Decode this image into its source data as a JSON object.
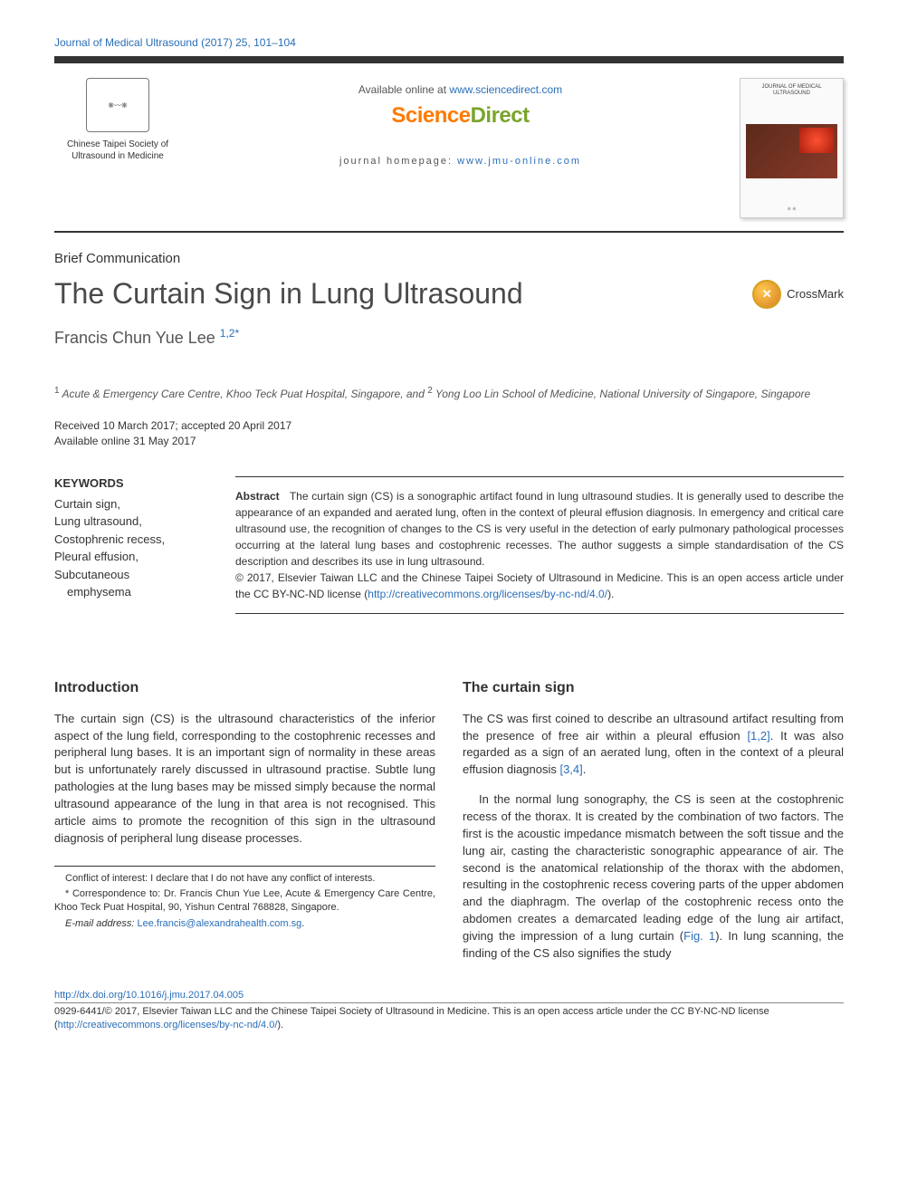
{
  "journal_header": "Journal of Medical Ultrasound (2017) 25, 101–104",
  "header": {
    "society_name": "Chinese Taipei Society of Ultrasound in Medicine",
    "available_prefix": "Available online at ",
    "available_link": "www.sciencedirect.com",
    "sd_science": "Science",
    "sd_direct": "Direct",
    "homepage_prefix": "journal homepage: ",
    "homepage_link": "www.jmu-online.com",
    "cover_title": "JOURNAL OF MEDICAL ULTRASOUND"
  },
  "article_type": "Brief Communication",
  "title": "The Curtain Sign in Lung Ultrasound",
  "crossmark_label": "CrossMark",
  "author": {
    "name": "Francis Chun Yue Lee ",
    "sup": "1,2*"
  },
  "affiliations": {
    "sup1": "1",
    "text1": " Acute & Emergency Care Centre, Khoo Teck Puat Hospital, Singapore, and ",
    "sup2": "2",
    "text2": " Yong Loo Lin School of Medicine, National University of Singapore, Singapore"
  },
  "dates": {
    "line1": "Received 10 March 2017; accepted 20 April 2017",
    "line2": "Available online 31 May 2017"
  },
  "keywords": {
    "heading": "KEYWORDS",
    "items": [
      "Curtain sign,",
      "Lung ultrasound,",
      "Costophrenic recess,",
      "Pleural effusion,",
      "Subcutaneous"
    ],
    "indent_item": "emphysema"
  },
  "abstract": {
    "label": "Abstract",
    "body": "The curtain sign (CS) is a sonographic artifact found in lung ultrasound studies. It is generally used to describe the appearance of an expanded and aerated lung, often in the context of pleural effusion diagnosis. In emergency and critical care ultrasound use, the recognition of changes to the CS is very useful in the detection of early pulmonary pathological processes occurring at the lateral lung bases and costophrenic recesses. The author suggests a simple standardisation of the CS description and describes its use in lung ultrasound.",
    "copyright": "© 2017, Elsevier Taiwan LLC and the Chinese Taipei Society of Ultrasound in Medicine. This is an open access article under the CC BY-NC-ND license (",
    "cc_link": "http://creativecommons.org/licenses/by-nc-nd/4.0/",
    "copyright_end": ")."
  },
  "sections": {
    "intro_heading": "Introduction",
    "intro_p1": "The curtain sign (CS) is the ultrasound characteristics of the inferior aspect of the lung field, corresponding to the costophrenic recesses and peripheral lung bases. It is an important sign of normality in these areas but is unfortunately rarely discussed in ultrasound practise. Subtle lung pathologies at the lung bases may be missed simply because the normal ultrasound appearance of the lung in that area is not recognised. This article aims to promote the recognition of this sign in the ultrasound diagnosis of peripheral lung disease processes.",
    "cs_heading": "The curtain sign",
    "cs_p1_a": "The CS was first coined to describe an ultrasound artifact resulting from the presence of free air within a pleural effusion ",
    "cs_ref12": "[1,2]",
    "cs_p1_b": ". It was also regarded as a sign of an aerated lung, often in the context of a pleural effusion diagnosis ",
    "cs_ref34": "[3,4]",
    "cs_p1_c": ".",
    "cs_p2_a": "In the normal lung sonography, the CS is seen at the costophrenic recess of the thorax. It is created by the combination of two factors. The first is the acoustic impedance mismatch between the soft tissue and the lung air, casting the characteristic sonographic appearance of air. The second is the anatomical relationship of the thorax with the abdomen, resulting in the costophrenic recess covering parts of the upper abdomen and the diaphragm. The overlap of the costophrenic recess onto the abdomen creates a demarcated leading edge of the lung air artifact, giving the impression of a lung curtain (",
    "cs_fig1": "Fig. 1",
    "cs_p2_b": "). In lung scanning, the finding of the CS also signifies the study"
  },
  "footnotes": {
    "conflict": "Conflict of interest: I declare that I do not have any conflict of interests.",
    "corr": "* Correspondence to: Dr. Francis Chun Yue Lee, Acute & Emergency Care Centre, Khoo Teck Puat Hospital, 90, Yishun Central 768828, Singapore.",
    "email_label": "E-mail address: ",
    "email": "Lee.francis@alexandrahealth.com.sg",
    "email_end": "."
  },
  "footer": {
    "doi": "http://dx.doi.org/10.1016/j.jmu.2017.04.005",
    "copyright_a": "0929-6441/© 2017, Elsevier Taiwan LLC and the Chinese Taipei Society of Ultrasound in Medicine. This is an open access article under the CC BY-NC-ND license (",
    "cc_link": "http://creativecommons.org/licenses/by-nc-nd/4.0/",
    "copyright_b": ")."
  },
  "colors": {
    "link": "#2a6eb8",
    "sd_orange": "#ff7a00",
    "sd_green": "#7aa52c",
    "text": "#333333"
  }
}
